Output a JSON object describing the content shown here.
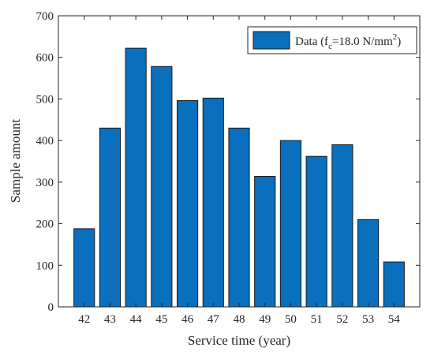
{
  "chart_data": {
    "type": "bar",
    "categories": [
      "42",
      "43",
      "44",
      "45",
      "46",
      "47",
      "48",
      "49",
      "50",
      "51",
      "52",
      "53",
      "54"
    ],
    "series": [
      {
        "name": "Data (f_c=18.0 N/mm^2)",
        "values": [
          188,
          430,
          622,
          578,
          496,
          502,
          430,
          314,
          400,
          362,
          390,
          210,
          108
        ]
      }
    ],
    "xlabel": "Service time (year)",
    "ylabel": "Sample amount",
    "ylim": [
      0,
      700
    ],
    "yticks": [
      "0",
      "100",
      "200",
      "300",
      "400",
      "500",
      "600",
      "700"
    ],
    "grid": false,
    "legend_position": "top-right",
    "bar_color": "#0a6fbd"
  },
  "legend": {
    "prefix": "Data (f",
    "subscript": "c",
    "middle": "=18.0 N/mm",
    "superscript": "2",
    "suffix": ")"
  }
}
